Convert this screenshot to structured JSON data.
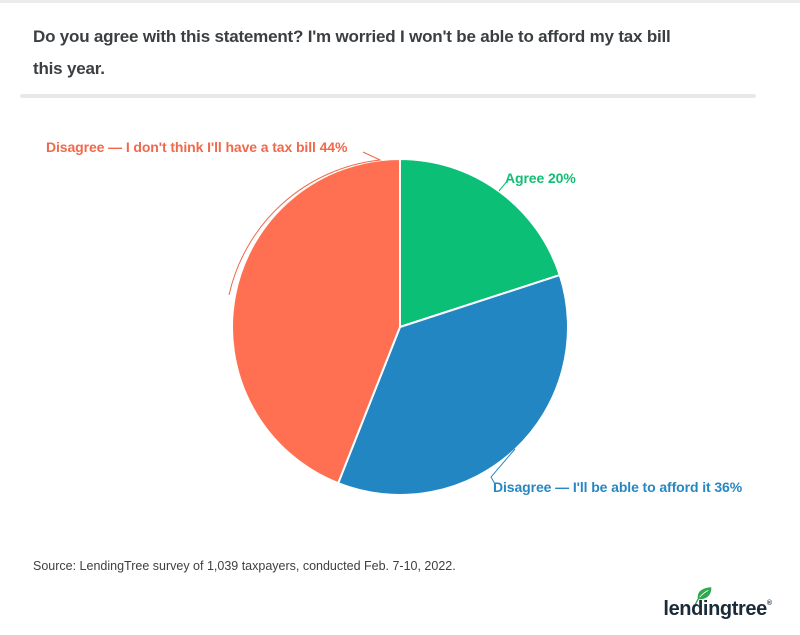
{
  "header": {
    "title_line1": "Do you agree with this statement? I'm worried I won't be able to afford my tax bill",
    "title_line2": "this year."
  },
  "chart_data": {
    "type": "pie",
    "title": "Do you agree with this statement? I'm worried I won't be able to afford my tax bill this year.",
    "direction": "clockwise",
    "start_angle": "12 o'clock",
    "legend_position": "callout-labels",
    "slices": [
      {
        "label": "Agree",
        "value": 20,
        "display": "Agree 20%",
        "color": "#0bbf76",
        "label_color": "#10bf75"
      },
      {
        "label": "Disagree — I'll be able to afford it",
        "value": 36,
        "display": "Disagree — I'll be able to afford it 36%",
        "color": "#2286c2",
        "label_color": "#2787c3"
      },
      {
        "label": "Disagree — I don't think I'll have a tax bill",
        "value": 44,
        "display": "Disagree — I don't think I'll have a tax bill 44%",
        "color": "#ff7052",
        "label_color": "#f0694c"
      }
    ]
  },
  "footer": {
    "source": "Source: LendingTree survey of 1,039 taxpayers, conducted Feb. 7-10, 2022.",
    "logo_text": "lendingtree",
    "logo_registered": "®"
  },
  "colors": {
    "title": "#3b3f42",
    "divider": "#e8e8e8",
    "source": "#404040",
    "logo_navy": "#1b2b3a",
    "leaf_green": "#2fa84f"
  }
}
